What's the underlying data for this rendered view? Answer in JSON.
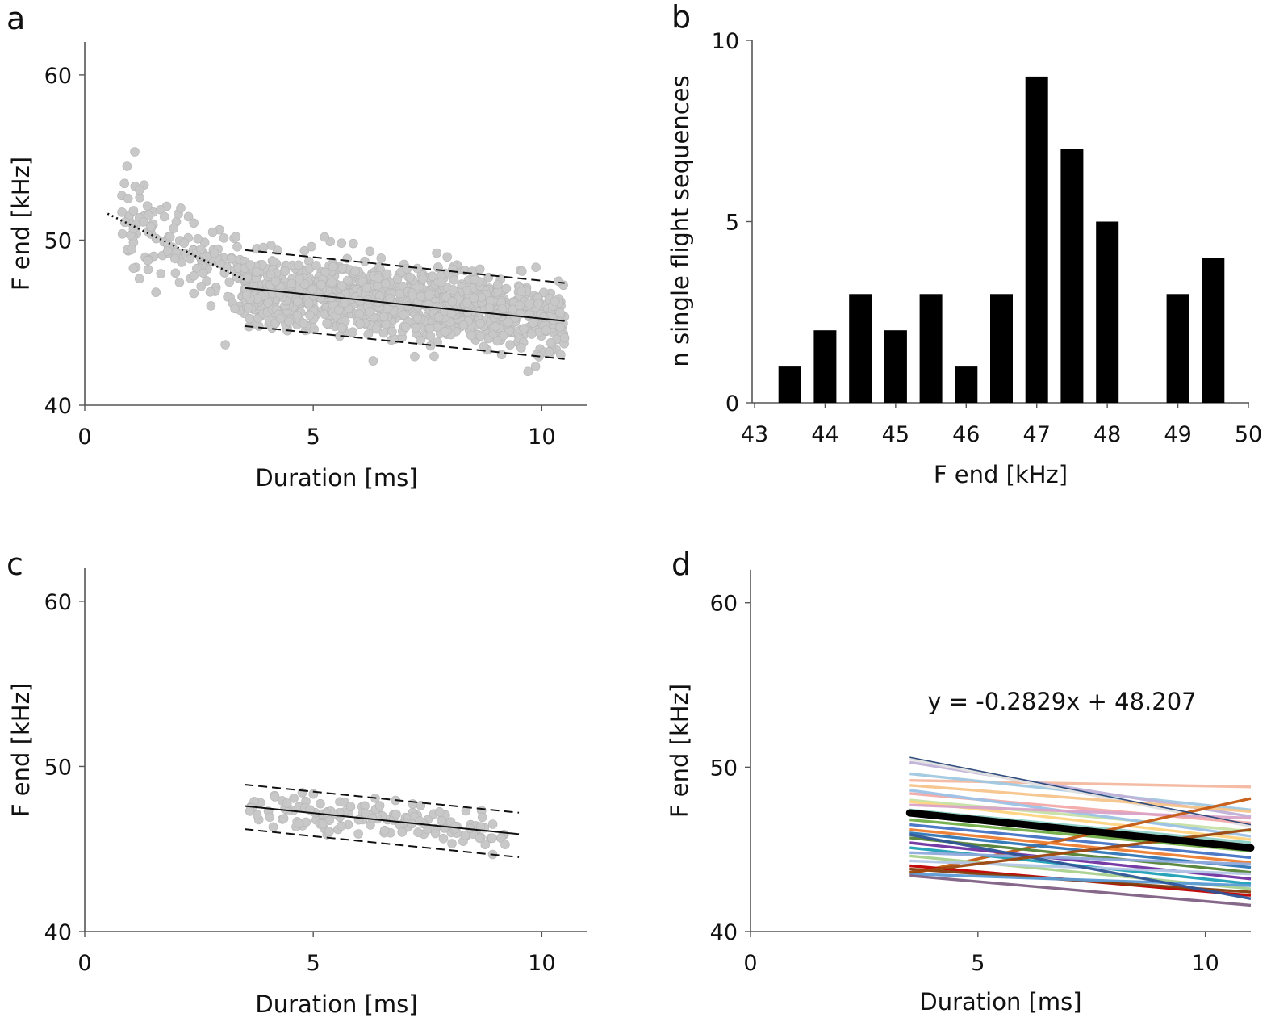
{
  "figure": {
    "panels": [
      "a",
      "b",
      "c",
      "d"
    ]
  },
  "chart_data": [
    {
      "panel": "a",
      "type": "scatter",
      "xlabel": "Duration [ms]",
      "ylabel": "F end [kHz]",
      "xlim": [
        0,
        11
      ],
      "ylim": [
        40,
        62
      ],
      "xticks": [
        "0",
        "5",
        "10"
      ],
      "yticks": [
        "40",
        "50",
        "60"
      ],
      "point_color": "#c8c8c8",
      "point_cloud": [
        {
          "x_range": [
            0.8,
            3.5
          ],
          "y_mean_at_start": 51.5,
          "y_mean_at_end": 47.6,
          "spread": 1.3,
          "count": 150
        },
        {
          "x_range": [
            3.5,
            10.5
          ],
          "y_mean_at_start": 47.2,
          "y_mean_at_end": 45.2,
          "spread": 1.1,
          "count": 1100
        }
      ],
      "lines": [
        {
          "name": "dotted-fit",
          "style": "dotted",
          "x": [
            0.5,
            3.5
          ],
          "y": [
            51.6,
            47.6
          ]
        },
        {
          "name": "fit",
          "style": "solid",
          "x": [
            3.5,
            10.5
          ],
          "y": [
            47.1,
            45.1
          ]
        },
        {
          "name": "upper-bound",
          "style": "dashed",
          "x": [
            3.5,
            10.5
          ],
          "y": [
            49.4,
            47.4
          ]
        },
        {
          "name": "lower-bound",
          "style": "dashed",
          "x": [
            3.5,
            10.5
          ],
          "y": [
            44.8,
            42.8
          ]
        }
      ]
    },
    {
      "panel": "b",
      "type": "bar",
      "xlabel": "F end [kHz]",
      "ylabel": "n single flight sequences",
      "xlim": [
        43,
        50
      ],
      "ylim": [
        0,
        10
      ],
      "xticks": [
        "43",
        "44",
        "45",
        "46",
        "47",
        "48",
        "49",
        "50"
      ],
      "yticks": [
        "0",
        "5",
        "10"
      ],
      "bar_color": "#000000",
      "categories": [
        43.5,
        44,
        44.5,
        45,
        45.5,
        46,
        46.5,
        47,
        47.5,
        48,
        48.5,
        49,
        49.5
      ],
      "values": [
        1,
        2,
        3,
        2,
        3,
        1,
        3,
        9,
        7,
        5,
        0,
        3,
        4
      ]
    },
    {
      "panel": "c",
      "type": "scatter",
      "xlabel": "Duration [ms]",
      "ylabel": "F end [kHz]",
      "xlim": [
        0,
        11
      ],
      "ylim": [
        40,
        62
      ],
      "xticks": [
        "0",
        "5",
        "10"
      ],
      "yticks": [
        "40",
        "50",
        "60"
      ],
      "point_color": "#c8c8c8",
      "point_cloud": [
        {
          "x_range": [
            3.6,
            9.2
          ],
          "y_mean_at_start": 47.6,
          "y_mean_at_end": 46.0,
          "spread": 0.6,
          "count": 150
        }
      ],
      "lines": [
        {
          "name": "fit",
          "style": "solid",
          "x": [
            3.5,
            9.5
          ],
          "y": [
            47.6,
            45.9
          ]
        },
        {
          "name": "upper-bound",
          "style": "dashed",
          "x": [
            3.5,
            9.5
          ],
          "y": [
            48.9,
            47.2
          ]
        },
        {
          "name": "lower-bound",
          "style": "dashed",
          "x": [
            3.5,
            9.5
          ],
          "y": [
            46.2,
            44.5
          ]
        }
      ]
    },
    {
      "panel": "d",
      "type": "line",
      "xlabel": "Duration [ms]",
      "ylabel": "F end [kHz]",
      "xlim": [
        0,
        11
      ],
      "ylim": [
        40,
        62
      ],
      "xticks": [
        "0",
        "5",
        "10"
      ],
      "yticks": [
        "40",
        "50",
        "60"
      ],
      "annotation": "y = -0.2829x + 48.207",
      "mean_line": {
        "name": "mean-fit",
        "color": "#000000",
        "x": [
          3.5,
          11
        ],
        "y": [
          47.22,
          45.09
        ]
      },
      "series": [
        {
          "name": "s1",
          "color": "#f4b8a0",
          "x": [
            3.5,
            11
          ],
          "y": [
            49.2,
            48.8
          ]
        },
        {
          "name": "s2",
          "color": "#a0c8e0",
          "x": [
            3.5,
            11
          ],
          "y": [
            49.6,
            47.4
          ]
        },
        {
          "name": "s3",
          "color": "#c0b0d8",
          "x": [
            3.5,
            11
          ],
          "y": [
            50.3,
            47.0
          ]
        },
        {
          "name": "s4",
          "color": "#e0e0e0",
          "x": [
            3.5,
            11
          ],
          "y": [
            50.5,
            46.4
          ]
        },
        {
          "name": "s5",
          "color": "#f6c48a",
          "x": [
            3.5,
            11
          ],
          "y": [
            48.9,
            47.3
          ]
        },
        {
          "name": "s6",
          "color": "#f2a9a9",
          "x": [
            3.5,
            11
          ],
          "y": [
            48.4,
            46.6
          ]
        },
        {
          "name": "s7",
          "color": "#c6e0a4",
          "x": [
            3.5,
            11
          ],
          "y": [
            48.0,
            46.1
          ]
        },
        {
          "name": "s8",
          "color": "#9bc2e6",
          "x": [
            3.5,
            11
          ],
          "y": [
            48.6,
            45.8
          ]
        },
        {
          "name": "s9",
          "color": "#ffd480",
          "x": [
            3.5,
            11
          ],
          "y": [
            47.9,
            45.6
          ]
        },
        {
          "name": "s10",
          "color": "#d9a3c8",
          "x": [
            3.5,
            11
          ],
          "y": [
            47.7,
            46.9
          ]
        },
        {
          "name": "s11",
          "color": "#8fd1c7",
          "x": [
            3.5,
            11
          ],
          "y": [
            47.4,
            45.4
          ]
        },
        {
          "name": "s12",
          "color": "#f0a060",
          "x": [
            3.5,
            11
          ],
          "y": [
            47.1,
            45.0
          ]
        },
        {
          "name": "s13",
          "color": "#70ad47",
          "x": [
            3.5,
            11
          ],
          "y": [
            46.8,
            44.9
          ]
        },
        {
          "name": "s14",
          "color": "#4472c4",
          "x": [
            3.5,
            11
          ],
          "y": [
            46.5,
            44.5
          ]
        },
        {
          "name": "s15",
          "color": "#c55a11",
          "x": [
            3.5,
            11
          ],
          "y": [
            43.5,
            48.1
          ]
        },
        {
          "name": "s16",
          "color": "#ed7d31",
          "x": [
            3.5,
            11
          ],
          "y": [
            46.2,
            44.2
          ]
        },
        {
          "name": "s17",
          "color": "#2e75b6",
          "x": [
            3.5,
            11
          ],
          "y": [
            46.0,
            43.9
          ]
        },
        {
          "name": "s18",
          "color": "#548235",
          "x": [
            3.5,
            11
          ],
          "y": [
            45.7,
            43.6
          ]
        },
        {
          "name": "s19",
          "color": "#7030a0",
          "x": [
            3.5,
            11
          ],
          "y": [
            45.4,
            43.2
          ]
        },
        {
          "name": "s20",
          "color": "#1f9fb4",
          "x": [
            3.5,
            11
          ],
          "y": [
            45.1,
            42.9
          ]
        },
        {
          "name": "s21",
          "color": "#8faadc",
          "x": [
            3.5,
            11
          ],
          "y": [
            44.8,
            44.1
          ]
        },
        {
          "name": "s22",
          "color": "#a9d18e",
          "x": [
            3.5,
            11
          ],
          "y": [
            44.6,
            42.6
          ]
        },
        {
          "name": "s23",
          "color": "#b4c7e7",
          "x": [
            3.5,
            11
          ],
          "y": [
            44.3,
            43.5
          ]
        },
        {
          "name": "s24",
          "color": "#c00000",
          "x": [
            3.5,
            11
          ],
          "y": [
            44.0,
            42.2
          ]
        },
        {
          "name": "s25",
          "color": "#843c0c",
          "x": [
            3.5,
            11
          ],
          "y": [
            43.8,
            42.4
          ]
        },
        {
          "name": "s26",
          "color": "#5b9bd5",
          "x": [
            3.5,
            11
          ],
          "y": [
            43.5,
            42.8
          ]
        },
        {
          "name": "s27",
          "color": "#7f6084",
          "x": [
            3.5,
            11
          ],
          "y": [
            43.4,
            41.6
          ]
        },
        {
          "name": "s28",
          "color": "#2f5597",
          "x": [
            3.5,
            11
          ],
          "y": [
            45.9,
            42.0
          ]
        },
        {
          "name": "s29",
          "color": "#9e480e",
          "x": [
            3.5,
            11
          ],
          "y": [
            43.6,
            46.2
          ]
        },
        {
          "name": "s30",
          "color": "#264478",
          "x": [
            3.5,
            11
          ],
          "y": [
            50.6,
            46.5
          ]
        }
      ]
    }
  ]
}
